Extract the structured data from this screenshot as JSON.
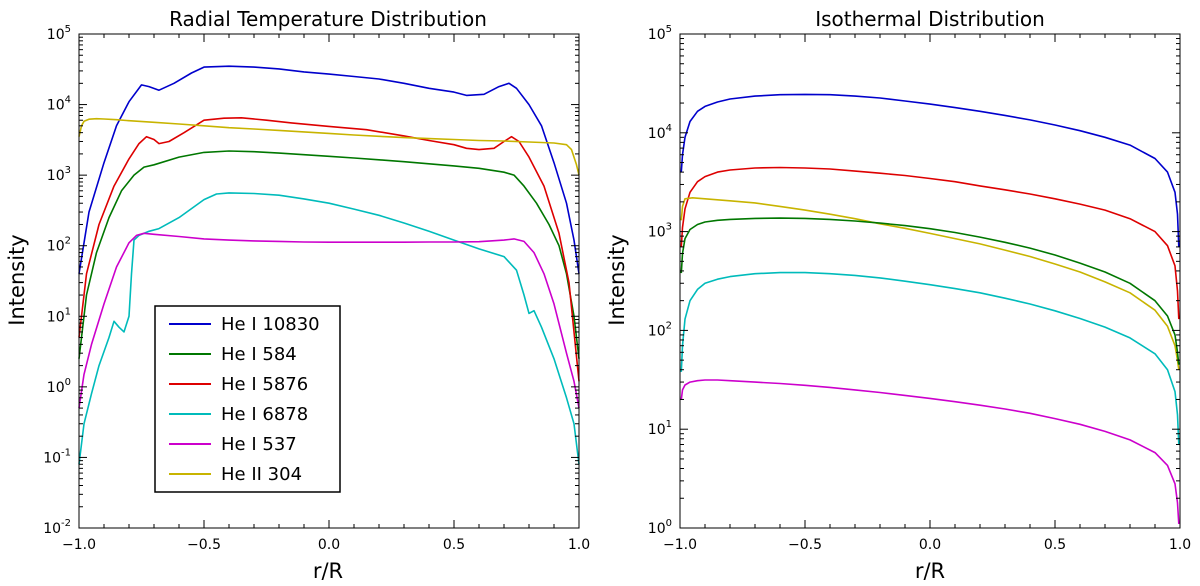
{
  "chart_data": [
    {
      "type": "line",
      "title": "Radial Temperature Distribution",
      "xlabel": "r/R",
      "ylabel": "Intensity",
      "xlim": [
        -1.0,
        1.0
      ],
      "ylim": [
        0.01,
        100000
      ],
      "yscale": "log",
      "xticks": [
        "−1.0",
        "−0.5",
        "0.0",
        "0.5",
        "1.0"
      ],
      "yticks": [
        {
          "base": "10",
          "exp": "-2"
        },
        {
          "base": "10",
          "exp": "-1"
        },
        {
          "base": "10",
          "exp": "0"
        },
        {
          "base": "10",
          "exp": "1"
        },
        {
          "base": "10",
          "exp": "2"
        },
        {
          "base": "10",
          "exp": "3"
        },
        {
          "base": "10",
          "exp": "4"
        },
        {
          "base": "10",
          "exp": "5"
        }
      ],
      "grid": false,
      "legend": "lower-left",
      "series": [
        {
          "name": "He I 10830",
          "color": "#0000cc",
          "x": [
            -1.0,
            -0.96,
            -0.9,
            -0.85,
            -0.8,
            -0.75,
            -0.72,
            -0.68,
            -0.62,
            -0.55,
            -0.5,
            -0.4,
            -0.3,
            -0.2,
            -0.1,
            0.0,
            0.1,
            0.2,
            0.3,
            0.4,
            0.5,
            0.55,
            0.62,
            0.68,
            0.72,
            0.75,
            0.8,
            0.85,
            0.9,
            0.95,
            0.98,
            1.0
          ],
          "y": [
            40,
            300,
            1500,
            5000,
            11000,
            19000,
            18000,
            16000,
            20000,
            28000,
            34000,
            35000,
            34000,
            32000,
            29000,
            27000,
            25000,
            23000,
            20000,
            17000,
            15000,
            13500,
            14000,
            18000,
            20000,
            17000,
            10000,
            5000,
            1500,
            400,
            120,
            40
          ]
        },
        {
          "name": "He I 584",
          "color": "#007700",
          "x": [
            -1.0,
            -0.97,
            -0.93,
            -0.88,
            -0.83,
            -0.78,
            -0.74,
            -0.7,
            -0.6,
            -0.5,
            -0.4,
            -0.3,
            -0.2,
            -0.1,
            0.0,
            0.1,
            0.2,
            0.3,
            0.4,
            0.5,
            0.6,
            0.7,
            0.74,
            0.78,
            0.83,
            0.88,
            0.92,
            0.95,
            0.98,
            1.0
          ],
          "y": [
            2.5,
            20,
            80,
            250,
            600,
            1000,
            1300,
            1400,
            1800,
            2100,
            2200,
            2150,
            2050,
            1950,
            1850,
            1750,
            1650,
            1550,
            1450,
            1350,
            1250,
            1100,
            1000,
            700,
            400,
            200,
            100,
            40,
            10,
            2.5
          ]
        },
        {
          "name": "He I 5876",
          "color": "#dd0000",
          "x": [
            -1.0,
            -0.97,
            -0.92,
            -0.86,
            -0.8,
            -0.76,
            -0.73,
            -0.7,
            -0.68,
            -0.64,
            -0.58,
            -0.5,
            -0.42,
            -0.35,
            -0.25,
            -0.15,
            0.0,
            0.15,
            0.3,
            0.4,
            0.5,
            0.55,
            0.6,
            0.66,
            0.7,
            0.73,
            0.76,
            0.8,
            0.86,
            0.92,
            0.96,
            0.98,
            1.0
          ],
          "y": [
            5,
            40,
            200,
            700,
            1700,
            2800,
            3500,
            3200,
            2800,
            3000,
            4000,
            6000,
            6400,
            6500,
            6000,
            5500,
            4900,
            4400,
            3600,
            3100,
            2700,
            2400,
            2300,
            2400,
            3000,
            3500,
            3000,
            1800,
            700,
            150,
            30,
            6,
            1.2
          ]
        },
        {
          "name": "He I 6878",
          "color": "#00bbbb",
          "x": [
            -1.0,
            -0.98,
            -0.95,
            -0.92,
            -0.88,
            -0.86,
            -0.84,
            -0.82,
            -0.8,
            -0.79,
            -0.78,
            -0.76,
            -0.72,
            -0.68,
            -0.6,
            -0.5,
            -0.45,
            -0.4,
            -0.3,
            -0.2,
            -0.1,
            0.0,
            0.1,
            0.2,
            0.3,
            0.4,
            0.5,
            0.6,
            0.7,
            0.75,
            0.78,
            0.8,
            0.82,
            0.85,
            0.9,
            0.95,
            0.98,
            1.0
          ],
          "y": [
            0.08,
            0.3,
            0.8,
            2,
            5,
            8.5,
            7,
            6,
            10,
            40,
            120,
            140,
            160,
            175,
            250,
            450,
            540,
            560,
            550,
            520,
            460,
            400,
            330,
            270,
            210,
            160,
            120,
            90,
            70,
            45,
            20,
            11,
            12,
            7,
            2.5,
            0.7,
            0.3,
            0.08
          ]
        },
        {
          "name": "He I 537",
          "color": "#cc00cc",
          "x": [
            -1.0,
            -0.98,
            -0.95,
            -0.9,
            -0.85,
            -0.8,
            -0.77,
            -0.74,
            -0.7,
            -0.6,
            -0.5,
            -0.4,
            -0.3,
            -0.2,
            -0.1,
            0.0,
            0.1,
            0.2,
            0.3,
            0.4,
            0.5,
            0.6,
            0.7,
            0.74,
            0.78,
            0.82,
            0.86,
            0.9,
            0.95,
            0.98,
            1.0
          ],
          "y": [
            0.5,
            1.5,
            4,
            15,
            50,
            110,
            140,
            150,
            145,
            135,
            125,
            120,
            117,
            115,
            113,
            112,
            112,
            112,
            112,
            113,
            113,
            114,
            120,
            125,
            115,
            80,
            40,
            15,
            3,
            1.2,
            0.5
          ]
        },
        {
          "name": "He II 304",
          "color": "#c8b400",
          "x": [
            -1.0,
            -0.995,
            -0.99,
            -0.98,
            -0.96,
            -0.93,
            -0.9,
            -0.85,
            -0.8,
            -0.7,
            -0.6,
            -0.5,
            -0.4,
            -0.3,
            -0.2,
            -0.1,
            0.0,
            0.1,
            0.2,
            0.3,
            0.4,
            0.5,
            0.6,
            0.7,
            0.8,
            0.9,
            0.95,
            0.97,
            0.99,
            1.0
          ],
          "y": [
            3500,
            4200,
            5000,
            5800,
            6200,
            6300,
            6250,
            6100,
            5900,
            5600,
            5300,
            5000,
            4700,
            4500,
            4300,
            4100,
            3900,
            3700,
            3550,
            3400,
            3300,
            3200,
            3100,
            3050,
            2950,
            2850,
            2700,
            2300,
            1400,
            1000
          ]
        }
      ]
    },
    {
      "type": "line",
      "title": "Isothermal Distribution",
      "xlabel": "r/R",
      "ylabel": "Intensity",
      "xlim": [
        -1.0,
        1.0
      ],
      "ylim": [
        1,
        100000
      ],
      "yscale": "log",
      "xticks": [
        "−1.0",
        "−0.5",
        "0.0",
        "0.5",
        "1.0"
      ],
      "yticks": [
        {
          "base": "10",
          "exp": "0"
        },
        {
          "base": "10",
          "exp": "1"
        },
        {
          "base": "10",
          "exp": "2"
        },
        {
          "base": "10",
          "exp": "3"
        },
        {
          "base": "10",
          "exp": "4"
        },
        {
          "base": "10",
          "exp": "5"
        }
      ],
      "grid": false,
      "series": [
        {
          "color": "#0000cc",
          "x": [
            -0.995,
            -0.99,
            -0.98,
            -0.96,
            -0.93,
            -0.9,
            -0.85,
            -0.8,
            -0.7,
            -0.6,
            -0.5,
            -0.4,
            -0.3,
            -0.2,
            -0.1,
            0.0,
            0.1,
            0.2,
            0.3,
            0.4,
            0.5,
            0.6,
            0.7,
            0.8,
            0.9,
            0.95,
            0.98,
            0.99,
            0.995
          ],
          "y": [
            4000,
            6000,
            9000,
            13000,
            16500,
            18500,
            20500,
            22000,
            23500,
            24300,
            24500,
            24300,
            23500,
            22500,
            21000,
            19500,
            18000,
            16500,
            15000,
            13500,
            12000,
            10500,
            9000,
            7500,
            5500,
            4000,
            2500,
            1500,
            700
          ]
        },
        {
          "color": "#dd0000",
          "x": [
            -0.995,
            -0.99,
            -0.98,
            -0.96,
            -0.93,
            -0.9,
            -0.85,
            -0.8,
            -0.7,
            -0.6,
            -0.5,
            -0.4,
            -0.3,
            -0.2,
            -0.1,
            0.0,
            0.1,
            0.2,
            0.3,
            0.4,
            0.5,
            0.6,
            0.7,
            0.8,
            0.9,
            0.95,
            0.98,
            0.99,
            0.995
          ],
          "y": [
            700,
            1100,
            1700,
            2500,
            3200,
            3600,
            4000,
            4200,
            4400,
            4450,
            4400,
            4300,
            4100,
            3900,
            3700,
            3450,
            3200,
            2900,
            2650,
            2400,
            2150,
            1900,
            1650,
            1350,
            1000,
            720,
            450,
            250,
            130
          ]
        },
        {
          "color": "#c8b400",
          "x": [
            -0.995,
            -0.99,
            -0.98,
            -0.95,
            -0.9,
            -0.8,
            -0.7,
            -0.6,
            -0.5,
            -0.4,
            -0.3,
            -0.2,
            -0.1,
            0.0,
            0.1,
            0.2,
            0.3,
            0.4,
            0.5,
            0.6,
            0.7,
            0.8,
            0.9,
            0.95,
            0.98,
            0.99,
            0.995
          ],
          "y": [
            1300,
            1800,
            2150,
            2200,
            2150,
            2050,
            1950,
            1800,
            1650,
            1500,
            1350,
            1200,
            1080,
            960,
            850,
            750,
            650,
            560,
            470,
            390,
            310,
            240,
            160,
            110,
            70,
            50,
            40
          ]
        },
        {
          "color": "#007700",
          "x": [
            -0.995,
            -0.99,
            -0.98,
            -0.96,
            -0.93,
            -0.9,
            -0.85,
            -0.8,
            -0.7,
            -0.6,
            -0.5,
            -0.4,
            -0.3,
            -0.2,
            -0.1,
            0.0,
            0.1,
            0.2,
            0.3,
            0.4,
            0.5,
            0.6,
            0.7,
            0.8,
            0.9,
            0.95,
            0.98,
            0.99,
            0.995
          ],
          "y": [
            380,
            600,
            850,
            1050,
            1180,
            1250,
            1300,
            1330,
            1360,
            1370,
            1360,
            1330,
            1280,
            1220,
            1150,
            1070,
            980,
            880,
            780,
            680,
            580,
            480,
            390,
            300,
            200,
            140,
            90,
            60,
            45
          ]
        },
        {
          "color": "#00bbbb",
          "x": [
            -0.995,
            -0.99,
            -0.98,
            -0.96,
            -0.93,
            -0.9,
            -0.85,
            -0.8,
            -0.7,
            -0.6,
            -0.5,
            -0.4,
            -0.3,
            -0.2,
            -0.1,
            0.0,
            0.1,
            0.2,
            0.3,
            0.4,
            0.5,
            0.6,
            0.7,
            0.8,
            0.9,
            0.95,
            0.98,
            0.99,
            0.995
          ],
          "y": [
            38,
            70,
            130,
            200,
            260,
            300,
            330,
            350,
            375,
            385,
            385,
            375,
            360,
            340,
            315,
            290,
            265,
            240,
            212,
            185,
            158,
            132,
            108,
            84,
            58,
            40,
            24,
            14,
            7
          ]
        },
        {
          "color": "#cc00cc",
          "x": [
            -0.995,
            -0.99,
            -0.98,
            -0.96,
            -0.93,
            -0.9,
            -0.85,
            -0.8,
            -0.7,
            -0.6,
            -0.5,
            -0.4,
            -0.3,
            -0.2,
            -0.1,
            0.0,
            0.1,
            0.2,
            0.3,
            0.4,
            0.5,
            0.6,
            0.7,
            0.8,
            0.9,
            0.95,
            0.98,
            0.99,
            0.995
          ],
          "y": [
            20,
            25,
            28,
            30,
            31,
            31.5,
            31.5,
            31,
            30,
            29,
            27.8,
            26.5,
            25,
            23.5,
            22,
            20.5,
            19,
            17.5,
            16,
            14.5,
            12.8,
            11.2,
            9.5,
            7.8,
            5.8,
            4.3,
            2.8,
            1.8,
            1.1
          ]
        }
      ]
    }
  ]
}
